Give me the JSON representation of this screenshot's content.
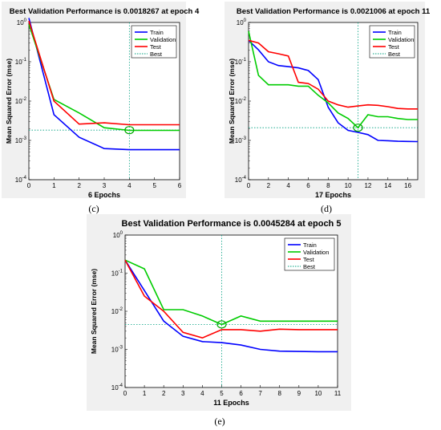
{
  "chart_data": [
    {
      "type": "line",
      "panel_label": "(c)",
      "title": "Best Validation Performance is 0.0018267 at epoch 4",
      "xlabel": "6 Epochs",
      "ylabel": "Mean Squared Error  (mse)",
      "yscale": "log",
      "xlim": [
        0,
        6
      ],
      "ylim": [
        0.0001,
        1
      ],
      "xticks": [
        0,
        1,
        2,
        3,
        4,
        5,
        6
      ],
      "ytick_exponents": [
        0,
        -1,
        -2,
        -3,
        -4
      ],
      "ytick_base": "10",
      "best_epoch": 4,
      "best_value": 0.0018267,
      "legend_position": "top-right",
      "series": [
        {
          "name": "Train",
          "color": "#0000ff",
          "style": "solid",
          "x": [
            0,
            1,
            2,
            3,
            4,
            5,
            6
          ],
          "y": [
            1.3,
            0.0045,
            0.0012,
            0.00062,
            0.00058,
            0.00058,
            0.00058
          ]
        },
        {
          "name": "Validation",
          "color": "#00cc00",
          "style": "solid",
          "x": [
            0,
            1,
            2,
            3,
            4,
            5,
            6
          ],
          "y": [
            0.9,
            0.011,
            0.005,
            0.0021,
            0.0018,
            0.0018,
            0.0018
          ]
        },
        {
          "name": "Test",
          "color": "#ff0000",
          "style": "solid",
          "x": [
            0,
            1,
            2,
            3,
            4,
            5,
            6
          ],
          "y": [
            1.1,
            0.01,
            0.0026,
            0.0028,
            0.0025,
            0.0025,
            0.0025
          ]
        },
        {
          "name": "Best",
          "color": "#00a080",
          "style": "dotted"
        }
      ]
    },
    {
      "type": "line",
      "panel_label": "(d)",
      "title": "Best Validation Performance is 0.0021006 at epoch 11",
      "xlabel": "17 Epochs",
      "ylabel": "Mean Squared Error  (mse)",
      "yscale": "log",
      "xlim": [
        0,
        17
      ],
      "ylim": [
        0.0001,
        1
      ],
      "xticks": [
        0,
        2,
        4,
        6,
        8,
        10,
        12,
        14,
        16
      ],
      "ytick_exponents": [
        0,
        -1,
        -2,
        -3,
        -4
      ],
      "ytick_base": "10",
      "best_epoch": 11,
      "best_value": 0.0021006,
      "legend_position": "top-right",
      "series": [
        {
          "name": "Train",
          "color": "#0000ff",
          "style": "solid",
          "x": [
            0,
            1,
            2,
            3,
            4,
            5,
            6,
            7,
            8,
            9,
            10,
            11,
            12,
            13,
            14,
            15,
            16,
            17
          ],
          "y": [
            0.35,
            0.2,
            0.1,
            0.08,
            0.075,
            0.07,
            0.06,
            0.035,
            0.007,
            0.0028,
            0.0018,
            0.0016,
            0.0014,
            0.001,
            0.00098,
            0.00095,
            0.00094,
            0.00093
          ]
        },
        {
          "name": "Validation",
          "color": "#00cc00",
          "style": "solid",
          "x": [
            0,
            1,
            2,
            3,
            4,
            5,
            6,
            7,
            8,
            9,
            10,
            11,
            12,
            13,
            14,
            15,
            16,
            17
          ],
          "y": [
            0.6,
            0.045,
            0.026,
            0.026,
            0.026,
            0.024,
            0.024,
            0.014,
            0.009,
            0.005,
            0.0036,
            0.0021,
            0.0045,
            0.004,
            0.004,
            0.0036,
            0.0034,
            0.0034
          ]
        },
        {
          "name": "Test",
          "color": "#ff0000",
          "style": "solid",
          "x": [
            0,
            1,
            2,
            3,
            4,
            5,
            6,
            7,
            8,
            9,
            10,
            11,
            12,
            13,
            14,
            15,
            16,
            17
          ],
          "y": [
            0.35,
            0.3,
            0.18,
            0.16,
            0.14,
            0.03,
            0.028,
            0.02,
            0.01,
            0.008,
            0.007,
            0.0075,
            0.008,
            0.0078,
            0.0072,
            0.0065,
            0.0063,
            0.0063
          ]
        },
        {
          "name": "Best",
          "color": "#00a080",
          "style": "dotted"
        }
      ]
    },
    {
      "type": "line",
      "panel_label": "(e)",
      "title": "Best Validation Performance is 0.0045284 at epoch 5",
      "xlabel": "11 Epochs",
      "ylabel": "Mean Squared Error  (mse)",
      "yscale": "log",
      "xlim": [
        0,
        11
      ],
      "ylim": [
        0.0001,
        1
      ],
      "xticks": [
        0,
        1,
        2,
        3,
        4,
        5,
        6,
        7,
        8,
        9,
        10,
        11
      ],
      "ytick_exponents": [
        0,
        -1,
        -2,
        -3,
        -4
      ],
      "ytick_base": "10",
      "best_epoch": 5,
      "best_value": 0.0045284,
      "legend_position": "top-right",
      "series": [
        {
          "name": "Train",
          "color": "#0000ff",
          "style": "solid",
          "x": [
            0,
            1,
            2,
            3,
            4,
            5,
            6,
            7,
            8,
            9,
            10,
            11
          ],
          "y": [
            0.22,
            0.035,
            0.0055,
            0.0022,
            0.0016,
            0.0015,
            0.0013,
            0.001,
            0.0009,
            0.00088,
            0.00087,
            0.00087
          ]
        },
        {
          "name": "Validation",
          "color": "#00cc00",
          "style": "solid",
          "x": [
            0,
            1,
            2,
            3,
            4,
            5,
            6,
            7,
            8,
            9,
            10,
            11
          ],
          "y": [
            0.22,
            0.13,
            0.011,
            0.011,
            0.0075,
            0.0045,
            0.0075,
            0.0055,
            0.0055,
            0.0055,
            0.0055,
            0.0055
          ]
        },
        {
          "name": "Test",
          "color": "#ff0000",
          "style": "solid",
          "x": [
            0,
            1,
            2,
            3,
            4,
            5,
            6,
            7,
            8,
            9,
            10,
            11
          ],
          "y": [
            0.22,
            0.025,
            0.01,
            0.0028,
            0.002,
            0.0033,
            0.0033,
            0.003,
            0.0034,
            0.0033,
            0.0033,
            0.0033
          ]
        },
        {
          "name": "Best",
          "color": "#00a080",
          "style": "dotted"
        }
      ]
    }
  ]
}
